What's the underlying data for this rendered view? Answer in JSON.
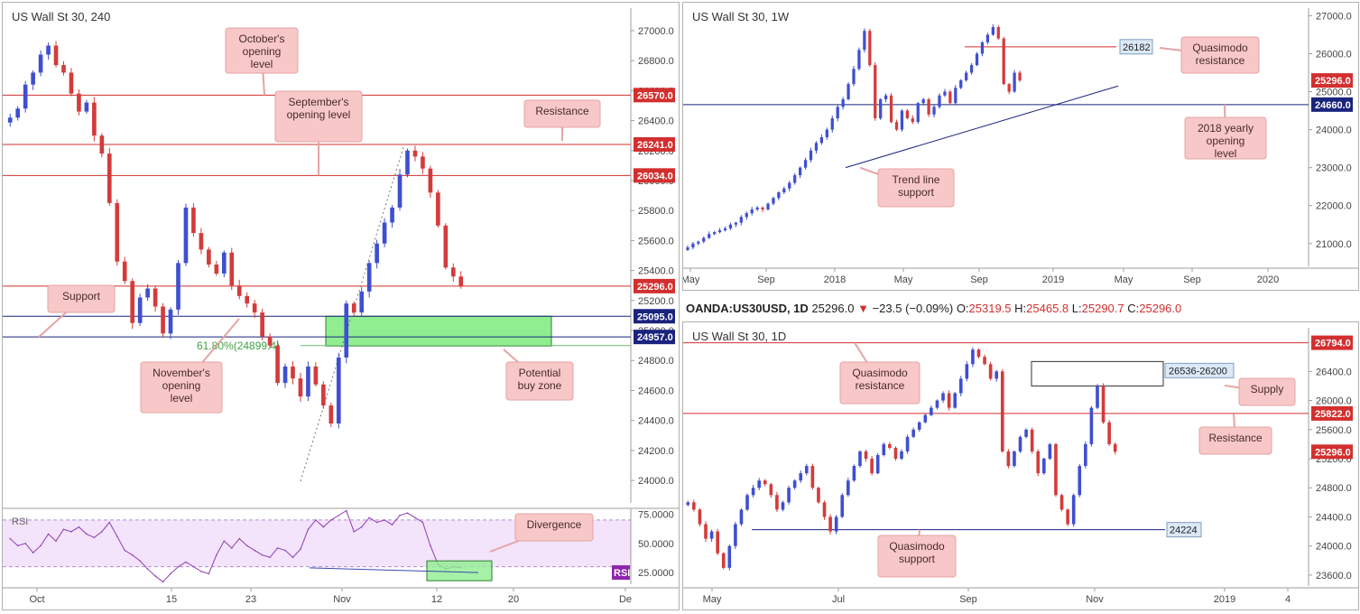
{
  "ohlc_bar": {
    "symbol": "OANDA:US30USD, 1D",
    "last": "25296.0",
    "change_arrow": "▼",
    "change": "−23.5 (−0.09%)",
    "o_label": "O:",
    "o": "25319.5",
    "h_label": "H:",
    "h": "25465.8",
    "l_label": "L:",
    "l": "25290.7",
    "c_label": "C:",
    "c": "25296.0"
  },
  "colors": {
    "bull": "#3f4fd0",
    "bear": "#d43b3b",
    "res_line": "#d32f2f",
    "sup_line": "#1a237e",
    "callout_fill": "#f8c8c8",
    "zone_fill": "#90ee90",
    "rsi_line": "#8e3fb0",
    "rsi_band": "#f3e3fb"
  },
  "chart_data": [
    {
      "id": "h4",
      "type": "candlestick",
      "title": "US Wall St 30, 240",
      "ylim": [
        23850,
        27150
      ],
      "y_ticks": [
        "27000.0",
        "26800.0",
        "26600.0",
        "26400.0",
        "26200.0",
        "26000.0",
        "25800.0",
        "25600.0",
        "25400.0",
        "25200.0",
        "25000.0",
        "24800.0",
        "24600.0",
        "24400.0",
        "24200.0",
        "24000.0"
      ],
      "x_ticks": [
        "Oct",
        "15",
        "23",
        "Nov",
        "12",
        "20",
        "De"
      ],
      "levels": [
        {
          "value": 26570,
          "tag": "26570.0",
          "color": "#d32f2f"
        },
        {
          "value": 26241,
          "tag": "26241.0",
          "color": "#d32f2f"
        },
        {
          "value": 26034,
          "tag": "26034.0",
          "color": "#d32f2f"
        },
        {
          "value": 25296,
          "tag": "25296.0",
          "color": "#d32f2f"
        },
        {
          "value": 25095,
          "tag": "25095.0",
          "color": "#1a237e"
        },
        {
          "value": 24957,
          "tag": "24957.0",
          "color": "#1a237e"
        }
      ],
      "fib_label": "61.80%(24899.4)",
      "callouts": [
        "October's opening level",
        "September's opening level",
        "Resistance",
        "Support",
        "November's opening level",
        "Potential buy zone"
      ],
      "closes": [
        26420,
        26480,
        26640,
        26720,
        26840,
        26900,
        26770,
        26720,
        26580,
        26460,
        26520,
        26300,
        26180,
        25850,
        25460,
        25330,
        25050,
        25220,
        25280,
        25160,
        24980,
        25140,
        25450,
        25820,
        25650,
        25540,
        25440,
        25380,
        25520,
        25300,
        25230,
        25180,
        25120,
        24960,
        24900,
        24650,
        24760,
        24680,
        24560,
        24760,
        24640,
        24500,
        24380,
        24820,
        25180,
        25120,
        25260,
        25450,
        25580,
        25720,
        25820,
        26040,
        26200,
        26160,
        26080,
        25920,
        25700,
        25420,
        25360,
        25296
      ],
      "rsi": {
        "label": "RSI",
        "ylim": [
          15,
          80
        ],
        "y_ticks": [
          "75.0000",
          "50.0000",
          "25.0000"
        ],
        "values": [
          54,
          48,
          50,
          42,
          48,
          58,
          52,
          62,
          60,
          64,
          58,
          55,
          60,
          68,
          56,
          44,
          40,
          35,
          28,
          22,
          17,
          24,
          30,
          34,
          30,
          26,
          24,
          40,
          52,
          46,
          54,
          48,
          44,
          40,
          38,
          46,
          44,
          38,
          45,
          62,
          70,
          64,
          70,
          74,
          78,
          60,
          64,
          72,
          68,
          70,
          66,
          74,
          76,
          72,
          68,
          48,
          32,
          28,
          30,
          29
        ],
        "divergence_label": "Divergence",
        "tag": "RSI"
      }
    },
    {
      "id": "w1",
      "type": "candlestick",
      "title": "US Wall St 30, 1W",
      "ylim": [
        20400,
        27200
      ],
      "y_ticks": [
        "27000.0",
        "26000.0",
        "25000.0",
        "24000.0",
        "23000.0",
        "22000.0",
        "21000.0"
      ],
      "x_ticks": [
        "May",
        "Sep",
        "2018",
        "May",
        "Sep",
        "2019",
        "May",
        "Sep",
        "2020"
      ],
      "levels": [
        {
          "value": 26182,
          "tag": "26182",
          "color": "#d32f2f"
        },
        {
          "value": 25296,
          "tag": "25296.0",
          "color": "#d32f2f"
        },
        {
          "value": 24660,
          "tag": "24660.0",
          "color": "#1a237e"
        }
      ],
      "callouts": [
        "Quasimodo resistance",
        "2018 yearly opening level",
        "Trend line support"
      ],
      "closes": [
        20900,
        21000,
        21050,
        21150,
        21250,
        21300,
        21350,
        21400,
        21500,
        21550,
        21700,
        21800,
        21900,
        21950,
        21900,
        22050,
        22200,
        22350,
        22450,
        22600,
        22800,
        23000,
        23200,
        23450,
        23650,
        23800,
        24000,
        24300,
        24600,
        24800,
        25200,
        25600,
        26100,
        26600,
        25700,
        24300,
        24800,
        24900,
        24200,
        24000,
        24500,
        24300,
        24200,
        24700,
        24800,
        24400,
        24600,
        24900,
        25000,
        24700,
        25100,
        25300,
        25500,
        25700,
        26000,
        26300,
        26500,
        26700,
        26400,
        25200,
        25000,
        25500,
        25296
      ],
      "trendline": "Trend line support"
    },
    {
      "id": "d1",
      "type": "candlestick",
      "title": "US Wall St 30, 1D",
      "ylim": [
        23450,
        27000
      ],
      "y_ticks": [
        "26400.0",
        "26000.0",
        "25600.0",
        "25200.0",
        "24800.0",
        "24400.0",
        "24000.0",
        "23600.0"
      ],
      "x_ticks": [
        "May",
        "Jul",
        "Sep",
        "Nov",
        "2019",
        "4"
      ],
      "levels": [
        {
          "value": 26794,
          "tag": "26794.0",
          "color": "#d32f2f"
        },
        {
          "value": 25822,
          "tag": "25822.0",
          "color": "#d32f2f"
        },
        {
          "value": 25296,
          "tag": "25296.0",
          "color": "#d32f2f"
        },
        {
          "value": 24224,
          "tag": "24224",
          "color": "#1a237e"
        }
      ],
      "supply_label": "26536-26200",
      "callouts": [
        "Quasimodo resistance",
        "Supply",
        "Resistance",
        "Quasimodo support"
      ],
      "closes": [
        24600,
        24500,
        24300,
        24100,
        24200,
        23900,
        23700,
        24000,
        24300,
        24500,
        24700,
        24800,
        24900,
        24850,
        24700,
        24500,
        24600,
        24800,
        24900,
        25000,
        25100,
        24800,
        24600,
        24400,
        24200,
        24400,
        24700,
        24900,
        25100,
        25300,
        25200,
        25000,
        25250,
        25400,
        25350,
        25200,
        25300,
        25500,
        25600,
        25700,
        25800,
        25900,
        26000,
        26100,
        25900,
        26100,
        26300,
        26500,
        26700,
        26600,
        26500,
        26300,
        26400,
        25300,
        25100,
        25300,
        25500,
        25600,
        25300,
        25000,
        25200,
        25400,
        24700,
        24500,
        24300,
        24700,
        25100,
        25400,
        25900,
        26200,
        25700,
        25400,
        25296
      ]
    }
  ]
}
